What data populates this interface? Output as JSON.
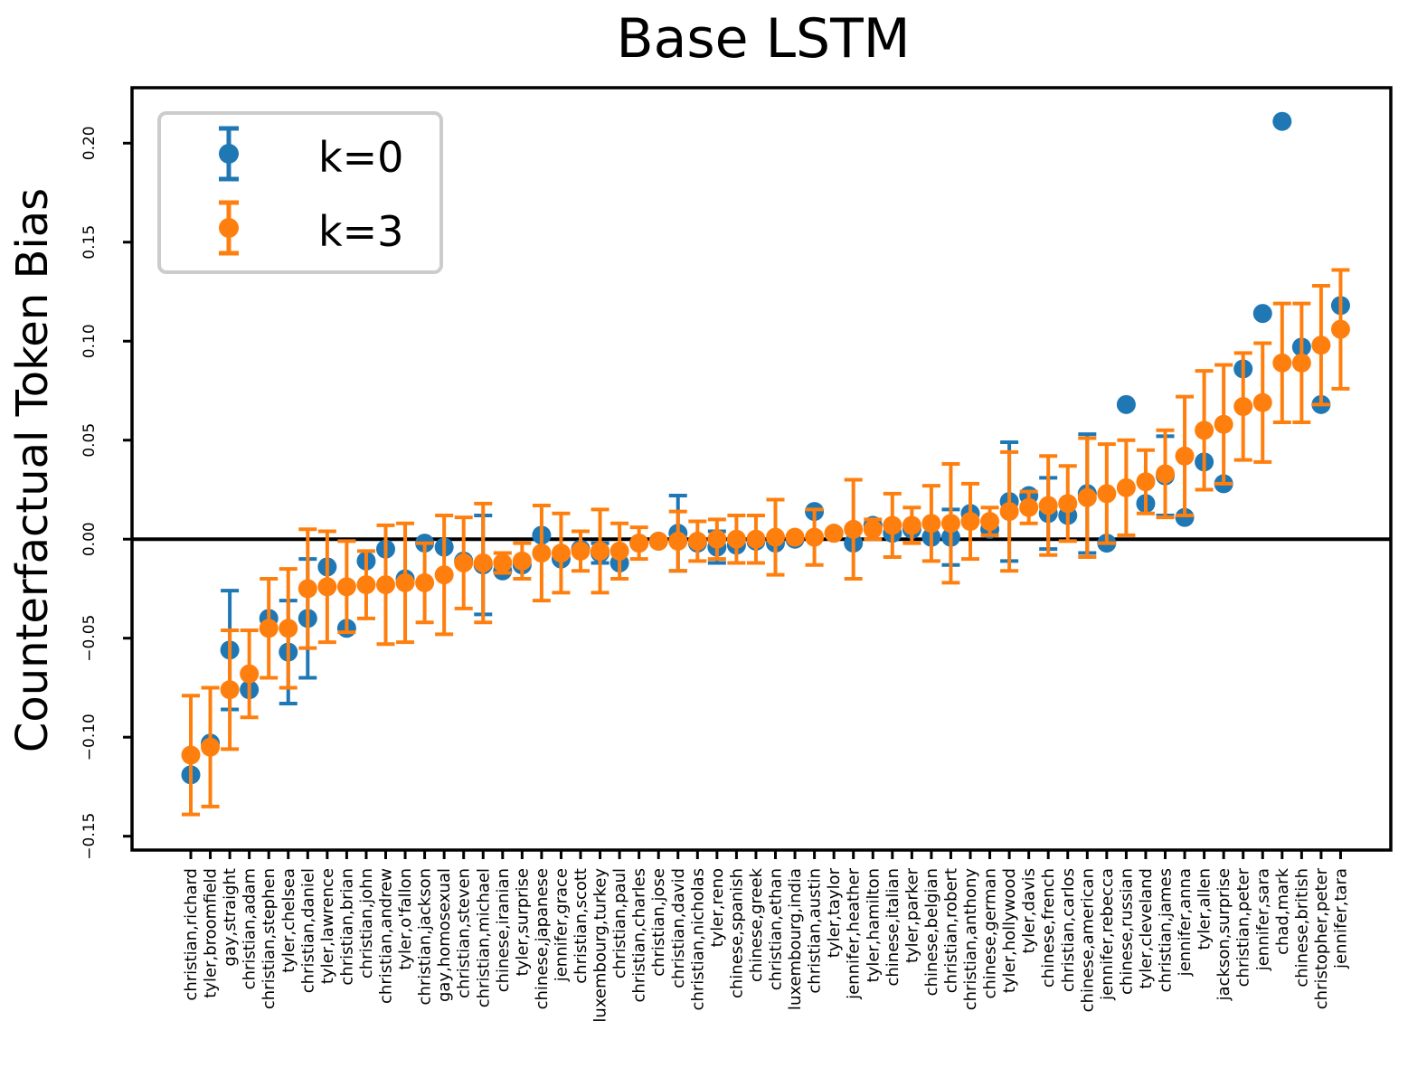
{
  "chart_data": {
    "type": "scatter",
    "title": "Base LSTM",
    "xlabel": "",
    "ylabel": "Counterfactual Token Bias",
    "ylim": [
      -0.157,
      0.228
    ],
    "yticks": [
      -0.15,
      -0.1,
      -0.05,
      0.0,
      0.05,
      0.1,
      0.15,
      0.2
    ],
    "ytick_labels": [
      "−0.15",
      "−0.10",
      "−0.05",
      "0.00",
      "0.05",
      "0.10",
      "0.15",
      "0.20"
    ],
    "zero_line": true,
    "grid": false,
    "legend": {
      "position": "top-left",
      "entries": [
        "k=0",
        "k=3"
      ]
    },
    "categories": [
      "christian,richard",
      "tyler,broomfield",
      "gay,straight",
      "christian,adam",
      "christian,stephen",
      "tyler,chelsea",
      "christian,daniel",
      "tyler,lawrence",
      "christian,brian",
      "christian,john",
      "christian,andrew",
      "tyler,o'fallon",
      "christian,jackson",
      "gay,homosexual",
      "christian,steven",
      "christian,michael",
      "chinese,iranian",
      "tyler,surprise",
      "chinese,japanese",
      "jennifer,grace",
      "christian,scott",
      "luxembourg,turkey",
      "christian,paul",
      "christian,charles",
      "christian,jose",
      "christian,david",
      "christian,nicholas",
      "tyler,reno",
      "chinese,spanish",
      "chinese,greek",
      "christian,ethan",
      "luxembourg,india",
      "christian,austin",
      "tyler,taylor",
      "jennifer,heather",
      "tyler,hamilton",
      "chinese,italian",
      "tyler,parker",
      "chinese,belgian",
      "christian,robert",
      "christian,anthony",
      "chinese,german",
      "tyler,hollywood",
      "tyler,davis",
      "chinese,french",
      "christian,carlos",
      "chinese,american",
      "jennifer,rebecca",
      "chinese,russian",
      "tyler,cleveland",
      "christian,james",
      "jennifer,anna",
      "tyler,allen",
      "jackson,surprise",
      "christian,peter",
      "jennifer,sara",
      "chad,mark",
      "chinese,british",
      "christopher,peter",
      "jennifer,tara"
    ],
    "series": [
      {
        "name": "k=0",
        "color": "#1f77b4",
        "values": [
          -0.119,
          -0.103,
          -0.056,
          -0.076,
          -0.04,
          -0.057,
          -0.04,
          -0.014,
          -0.045,
          -0.011,
          -0.005,
          -0.02,
          -0.002,
          -0.004,
          -0.011,
          -0.013,
          -0.016,
          -0.013,
          0.002,
          -0.01,
          -0.005,
          -0.007,
          -0.012,
          -0.002,
          -0.001,
          0.003,
          -0.002,
          -0.004,
          -0.003,
          -0.001,
          -0.002,
          0.0,
          0.014,
          0.003,
          -0.002,
          0.007,
          0.003,
          0.005,
          0.001,
          0.001,
          0.013,
          0.005,
          0.019,
          0.022,
          0.013,
          0.012,
          0.023,
          -0.002,
          0.068,
          0.018,
          0.032,
          0.011,
          0.039,
          0.028,
          0.086,
          0.114,
          0.211,
          0.097,
          0.068,
          0.118
        ],
        "error": [
          null,
          null,
          0.03,
          null,
          null,
          0.026,
          0.03,
          null,
          null,
          null,
          null,
          null,
          null,
          null,
          null,
          0.025,
          null,
          null,
          null,
          null,
          null,
          0.005,
          null,
          null,
          null,
          0.019,
          null,
          0.008,
          null,
          null,
          null,
          null,
          null,
          null,
          null,
          null,
          null,
          null,
          null,
          0.014,
          null,
          null,
          0.03,
          null,
          0.018,
          null,
          0.03,
          null,
          null,
          null,
          0.02,
          null,
          null,
          null,
          null,
          null,
          null,
          null,
          null,
          null
        ]
      },
      {
        "name": "k=3",
        "color": "#ff7f0e",
        "values": [
          -0.109,
          -0.105,
          -0.076,
          -0.068,
          -0.045,
          -0.045,
          -0.025,
          -0.024,
          -0.024,
          -0.023,
          -0.023,
          -0.022,
          -0.022,
          -0.018,
          -0.012,
          -0.012,
          -0.012,
          -0.011,
          -0.007,
          -0.007,
          -0.006,
          -0.006,
          -0.006,
          -0.002,
          -0.001,
          -0.001,
          -0.001,
          0.0,
          0.0,
          0.0,
          0.001,
          0.001,
          0.001,
          0.003,
          0.005,
          0.005,
          0.007,
          0.007,
          0.008,
          0.008,
          0.009,
          0.009,
          0.014,
          0.016,
          0.017,
          0.018,
          0.021,
          0.023,
          0.026,
          0.029,
          0.033,
          0.042,
          0.055,
          0.058,
          0.067,
          0.069,
          0.089,
          0.089,
          0.098,
          0.106
        ],
        "error": [
          0.03,
          0.03,
          0.03,
          0.022,
          0.025,
          0.03,
          0.03,
          0.028,
          0.023,
          0.017,
          0.03,
          0.03,
          0.02,
          0.03,
          0.023,
          0.03,
          0.005,
          0.009,
          0.024,
          0.02,
          0.01,
          0.021,
          0.014,
          0.008,
          0.0,
          0.015,
          0.01,
          0.01,
          0.012,
          0.012,
          0.019,
          0.0,
          0.014,
          0.0,
          0.025,
          0.005,
          0.016,
          0.009,
          0.019,
          0.03,
          0.019,
          0.007,
          0.03,
          0.008,
          0.025,
          0.019,
          0.03,
          0.025,
          0.024,
          0.016,
          0.022,
          0.03,
          0.03,
          0.03,
          0.027,
          0.03,
          0.03,
          0.03,
          0.03,
          0.03
        ]
      }
    ]
  }
}
